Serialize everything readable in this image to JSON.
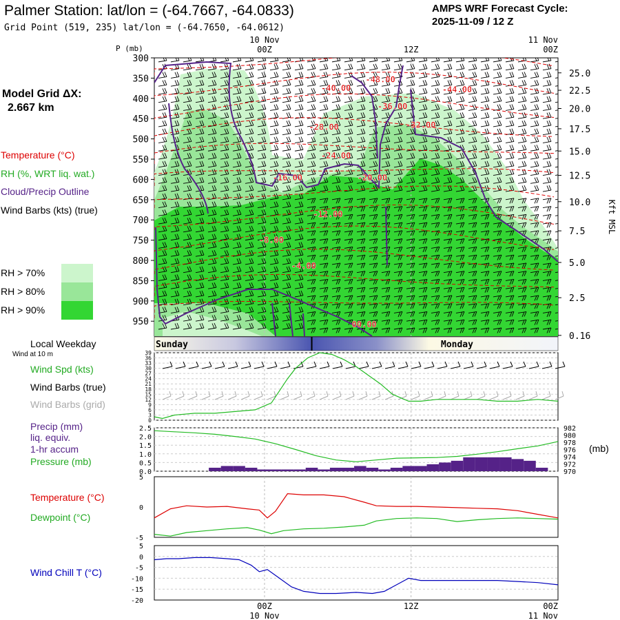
{
  "header": {
    "title": "Palmer Station:  lat/lon = (-64.7667, -64.0833)",
    "grid_point": "Grid Point (519, 235) lat/lon = (-64.7650, -64.0612)",
    "cycle_line1": "AMPS WRF Forecast Cycle:",
    "cycle_line2": "2025-11-09 / 12  Z"
  },
  "legend": {
    "model_grid_line1": "Model Grid ΔX:",
    "model_grid_line2": "2.667 km",
    "temperature": "Temperature (°C)",
    "rh": "RH (%, WRT liq. wat.)",
    "cloud": "Cloud/Precip Outline",
    "wind_barbs": "Wind Barbs (kts) (true)",
    "rh70": "RH > 70%",
    "rh80": "RH > 80%",
    "rh90": "RH > 90%",
    "local_weekday": "Local Weekday",
    "wind_at_10m": "Wind at 10 m",
    "wind_spd": "Wind Spd (kts)",
    "wind_barbs_true": "Wind Barbs (true)",
    "wind_barbs_grid": "Wind Barbs (grid)",
    "precip1": "Precip (mm)",
    "precip2": "liq. equiv.",
    "precip3": "1-hr accum",
    "pressure": "Pressure (mb)",
    "pressure_unit": "(mb)",
    "temp2": "Temperature (°C)",
    "dewpoint": "Dewpoint (°C)",
    "windchill": "Wind Chill T (°C)"
  },
  "colors": {
    "rh70": "#ccf5cc",
    "rh80": "#99e699",
    "rh90": "#33d633",
    "temperature": "#dd0000",
    "dewpoint": "#22bb22",
    "cloud": "#552288",
    "precip": "#552288",
    "windchill": "#0000bb",
    "grid_barb": "#aaaaaa"
  },
  "time_axis": {
    "top_labels": [
      {
        "x": 0.273,
        "line1": "10 Nov",
        "line2": "00Z"
      },
      {
        "x": 0.636,
        "line1": "",
        "line2": "12Z"
      },
      {
        "x": 1.0,
        "line1": "11 Nov",
        "line2": "00Z"
      }
    ],
    "bottom_labels": [
      {
        "x": 0.273,
        "line1": "00Z",
        "line2": "10 Nov"
      },
      {
        "x": 0.636,
        "line1": "12Z",
        "line2": ""
      },
      {
        "x": 1.0,
        "line1": "00Z",
        "line2": "11 Nov"
      }
    ],
    "weekday": {
      "left": "Sunday",
      "right": "Monday",
      "divider_x": 0.39
    }
  },
  "chart_data": [
    {
      "type": "heatmap",
      "name": "cross-section",
      "y_axis_label": "P (mb)",
      "pressure_ticks": [
        300,
        350,
        400,
        450,
        500,
        550,
        600,
        650,
        700,
        750,
        800,
        850,
        900,
        950
      ],
      "height_axis_label": "Kft MSL",
      "height_ticks": [
        {
          "p": 337,
          "label": "25.0"
        },
        {
          "p": 380,
          "label": "22.5"
        },
        {
          "p": 425,
          "label": "20.0"
        },
        {
          "p": 475,
          "label": "17.5"
        },
        {
          "p": 530,
          "label": "15.0"
        },
        {
          "p": 590,
          "label": "12.5"
        },
        {
          "p": 655,
          "label": "10.0"
        },
        {
          "p": 727,
          "label": "7.5"
        },
        {
          "p": 805,
          "label": "5.0"
        },
        {
          "p": 892,
          "label": "2.5"
        },
        {
          "p": 985,
          "label": "0.16"
        }
      ],
      "temperature_labels": [
        {
          "t": 0.56,
          "p": 360,
          "label": "-48.00"
        },
        {
          "t": 0.75,
          "p": 385,
          "label": "-44.00"
        },
        {
          "t": 0.45,
          "p": 382,
          "label": "-40.00"
        },
        {
          "t": 0.59,
          "p": 427,
          "label": "-36.00"
        },
        {
          "t": 0.66,
          "p": 473,
          "label": "-32.00"
        },
        {
          "t": 0.42,
          "p": 478,
          "label": "-28.00"
        },
        {
          "t": 0.45,
          "p": 548,
          "label": "-24.00"
        },
        {
          "t": 0.54,
          "p": 603,
          "label": "-20.00"
        },
        {
          "t": 0.33,
          "p": 603,
          "label": "-16.00"
        },
        {
          "t": 0.43,
          "p": 693,
          "label": "-12.00"
        },
        {
          "t": 0.29,
          "p": 757,
          "label": "-8.00"
        },
        {
          "t": 0.37,
          "p": 820,
          "label": "-4.00"
        },
        {
          "t": 0.52,
          "p": 965,
          "label": "00.00"
        }
      ]
    },
    {
      "type": "line",
      "name": "wind-speed",
      "y_ticks": [
        0,
        3,
        6,
        9,
        12,
        15,
        18,
        21,
        24,
        27,
        30,
        33,
        36,
        39
      ],
      "ylim": [
        0,
        39
      ],
      "x": [
        0,
        0.02,
        0.05,
        0.1,
        0.15,
        0.2,
        0.25,
        0.27,
        0.29,
        0.31,
        0.33,
        0.35,
        0.38,
        0.41,
        0.44,
        0.47,
        0.5,
        0.53,
        0.56,
        0.59,
        0.63,
        0.66,
        0.7,
        0.75,
        0.8,
        0.85,
        0.9,
        0.95,
        1.0
      ],
      "values": [
        2,
        1,
        3,
        4,
        4,
        5,
        6,
        8,
        10,
        17,
        24,
        30,
        36,
        39,
        38,
        35,
        31,
        26,
        21,
        15,
        11,
        11,
        12,
        12,
        12,
        11,
        11,
        12,
        11
      ]
    },
    {
      "type": "bar",
      "name": "precip-pressure",
      "precip_ticks": [
        0.0,
        0.5,
        1.0,
        1.5,
        2.0,
        2.5
      ],
      "precip_ylim": [
        0,
        2.5
      ],
      "pressure_ticks": [
        970,
        972,
        974,
        976,
        978,
        980,
        982
      ],
      "pressure_ylim": [
        970,
        982
      ],
      "precip_x": [
        0.15,
        0.18,
        0.21,
        0.24,
        0.27,
        0.3,
        0.33,
        0.36,
        0.39,
        0.42,
        0.45,
        0.48,
        0.51,
        0.54,
        0.57,
        0.6,
        0.63,
        0.66,
        0.69,
        0.72,
        0.75,
        0.78,
        0.81,
        0.84,
        0.87,
        0.9,
        0.93,
        0.96
      ],
      "precip_values": [
        0.2,
        0.3,
        0.3,
        0.2,
        0.1,
        0.1,
        0.1,
        0.1,
        0.2,
        0.1,
        0.2,
        0.2,
        0.3,
        0.2,
        0.1,
        0.2,
        0.3,
        0.3,
        0.4,
        0.5,
        0.6,
        0.8,
        0.8,
        0.8,
        0.8,
        0.7,
        0.6,
        0.2
      ],
      "pressure_x": [
        0,
        0.05,
        0.1,
        0.15,
        0.2,
        0.25,
        0.3,
        0.35,
        0.4,
        0.45,
        0.5,
        0.55,
        0.6,
        0.65,
        0.7,
        0.75,
        0.8,
        0.85,
        0.9,
        0.95,
        1.0
      ],
      "pressure_values": [
        981.2,
        980.9,
        980.6,
        980.2,
        979.6,
        978.9,
        977.6,
        976.0,
        974.3,
        973.1,
        972.6,
        973.1,
        973.6,
        973.7,
        973.8,
        974.1,
        974.7,
        975.4,
        976.2,
        977.0,
        978.2
      ]
    },
    {
      "type": "line",
      "name": "temperature-dewpoint",
      "y_ticks": [
        5,
        0,
        -5
      ],
      "ylim": [
        -5,
        5
      ],
      "series": [
        {
          "name": "Temperature",
          "x": [
            0,
            0.04,
            0.08,
            0.13,
            0.18,
            0.23,
            0.26,
            0.28,
            0.3,
            0.33,
            0.37,
            0.42,
            0.47,
            0.52,
            0.55,
            0.6,
            0.65,
            0.7,
            0.75,
            0.8,
            0.85,
            0.9,
            0.95,
            1.0
          ],
          "values": [
            -1.8,
            -0.3,
            0.2,
            0.0,
            0.1,
            -0.3,
            -0.5,
            -1.8,
            -0.7,
            2.2,
            2.0,
            2.0,
            1.7,
            0.8,
            0.2,
            0.1,
            0.1,
            0.0,
            -0.1,
            -0.2,
            -0.3,
            -0.6,
            -1.2,
            -1.8
          ]
        },
        {
          "name": "Dewpoint",
          "x": [
            0,
            0.04,
            0.08,
            0.13,
            0.18,
            0.23,
            0.26,
            0.29,
            0.32,
            0.37,
            0.42,
            0.47,
            0.52,
            0.55,
            0.6,
            0.65,
            0.7,
            0.75,
            0.8,
            0.85,
            0.9,
            0.95,
            1.0
          ],
          "values": [
            -4.5,
            -4.8,
            -4.2,
            -3.9,
            -3.6,
            -3.4,
            -3.8,
            -4.4,
            -3.9,
            -3.6,
            -3.5,
            -3.3,
            -3.0,
            -2.3,
            -1.9,
            -1.8,
            -1.9,
            -2.4,
            -2.1,
            -1.9,
            -1.8,
            -1.9,
            -2.0
          ]
        }
      ]
    },
    {
      "type": "line",
      "name": "wind-chill",
      "y_ticks": [
        5,
        0,
        -5,
        -10,
        -15,
        -20
      ],
      "ylim": [
        -20,
        5
      ],
      "x": [
        0,
        0.03,
        0.06,
        0.1,
        0.14,
        0.18,
        0.21,
        0.24,
        0.26,
        0.28,
        0.31,
        0.34,
        0.37,
        0.41,
        0.45,
        0.5,
        0.54,
        0.57,
        0.6,
        0.63,
        0.66,
        0.7,
        0.75,
        0.8,
        0.85,
        0.9,
        0.95,
        1.0
      ],
      "values": [
        -1.5,
        -1,
        -1,
        -0.5,
        -0.5,
        -1,
        -1.5,
        -4,
        -7,
        -6,
        -10,
        -14,
        -16,
        -17,
        -17,
        -16.5,
        -17,
        -16,
        -13,
        -10,
        -11,
        -11,
        -11,
        -11,
        -11,
        -11.5,
        -12,
        -13
      ]
    }
  ]
}
